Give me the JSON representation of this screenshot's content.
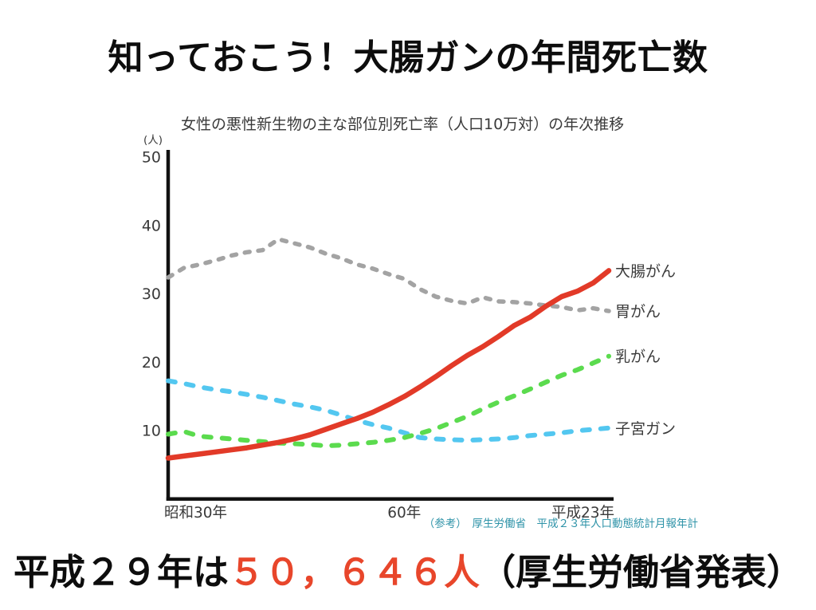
{
  "slide": {
    "title": "知っておこう！大腸ガンの年間死亡数",
    "headline": {
      "prefix": "平成２９年は",
      "value": "５０，６４６人",
      "suffix": "（厚生労働省発表）",
      "value_color": "#e8462b"
    }
  },
  "chart_data": {
    "type": "line",
    "title": "女性の悪性新生物の主な部位別死亡率（人口10万対）の年次推移",
    "unit_label": "(人)",
    "x": [
      1955,
      1957,
      1959,
      1961,
      1963,
      1965,
      1967,
      1969,
      1971,
      1973,
      1975,
      1977,
      1979,
      1981,
      1983,
      1985,
      1987,
      1989,
      1991,
      1993,
      1995,
      1997,
      1999,
      2001,
      2003,
      2005,
      2007,
      2009,
      2011
    ],
    "x_axis": {
      "tick_labels": [
        "昭和30年",
        "60年",
        "平成23年"
      ],
      "tick_years": [
        1955,
        1985,
        2011
      ]
    },
    "y_axis": {
      "ticks": [
        10,
        20,
        30,
        40,
        50
      ],
      "range": [
        0,
        50
      ]
    },
    "legend_position": "right-of-line-ends",
    "grid": false,
    "series": [
      {
        "name": "大腸がん",
        "color": "#e23a28",
        "style": "solid",
        "width": 6.5,
        "dash": null,
        "values": [
          6.0,
          6.3,
          6.6,
          6.9,
          7.2,
          7.5,
          7.9,
          8.3,
          8.8,
          9.4,
          10.2,
          11.0,
          11.8,
          12.7,
          13.8,
          15.0,
          16.4,
          17.9,
          19.5,
          21.0,
          22.3,
          23.8,
          25.4,
          26.6,
          28.2,
          29.6,
          30.4,
          31.6,
          33.4
        ]
      },
      {
        "name": "胃がん",
        "color": "#a3a3a3",
        "style": "dashed",
        "width": 5.5,
        "dash": "6 11",
        "values": [
          32.4,
          33.8,
          34.3,
          34.9,
          35.6,
          36.1,
          36.4,
          38.0,
          37.4,
          36.8,
          35.9,
          35.2,
          34.3,
          33.7,
          32.9,
          32.2,
          30.7,
          29.6,
          29.0,
          28.6,
          29.5,
          28.9,
          28.8,
          28.6,
          28.3,
          28.1,
          27.6,
          27.9,
          27.5
        ]
      },
      {
        "name": "乳がん",
        "color": "#5bdb4e",
        "style": "dashed",
        "width": 6,
        "dash": "9 14",
        "values": [
          9.5,
          9.9,
          9.2,
          9.0,
          8.8,
          8.6,
          8.4,
          8.2,
          8.1,
          8.0,
          7.8,
          7.9,
          8.1,
          8.3,
          8.6,
          9.0,
          9.6,
          10.3,
          11.2,
          12.1,
          13.2,
          14.2,
          15.1,
          16.1,
          17.1,
          18.1,
          18.9,
          19.9,
          20.9
        ]
      },
      {
        "name": "子宮ガン",
        "color": "#53c7f0",
        "style": "dashed",
        "width": 6,
        "dash": "9 14",
        "values": [
          17.3,
          16.9,
          16.4,
          16.0,
          15.7,
          15.3,
          14.9,
          14.4,
          13.9,
          13.5,
          13.0,
          12.3,
          11.5,
          10.9,
          10.4,
          9.7,
          9.0,
          8.8,
          8.7,
          8.6,
          8.7,
          8.8,
          9.0,
          9.3,
          9.5,
          9.7,
          10.0,
          10.2,
          10.4
        ]
      }
    ],
    "source": "（参考）　厚生労働省　平成２３年人口動態統計月報年計",
    "source_color": "#2e93a8",
    "text_color": "#3a3a3a",
    "axis_color": "#111111"
  }
}
